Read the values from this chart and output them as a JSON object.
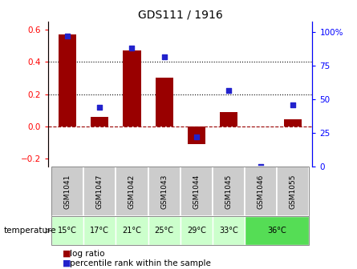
{
  "title": "GDS111 / 1916",
  "samples": [
    "GSM1041",
    "GSM1047",
    "GSM1042",
    "GSM1043",
    "GSM1044",
    "GSM1045",
    "GSM1046",
    "GSM1055"
  ],
  "temperatures": [
    "15°C",
    "17°C",
    "21°C",
    "25°C",
    "29°C",
    "33°C",
    "36°C",
    "36°C"
  ],
  "log_ratios": [
    0.57,
    0.06,
    0.47,
    0.3,
    -0.11,
    0.09,
    0.0,
    0.045
  ],
  "percentile_ranks": [
    97,
    44,
    88,
    82,
    22,
    57,
    0,
    46
  ],
  "bar_color": "#990000",
  "dot_color": "#2222cc",
  "left_ylim": [
    -0.25,
    0.65
  ],
  "right_ylim": [
    0,
    108
  ],
  "left_yticks": [
    -0.2,
    0.0,
    0.2,
    0.4,
    0.6
  ],
  "right_yticks": [
    0,
    25,
    50,
    75,
    100
  ],
  "right_yticklabels": [
    "0",
    "25",
    "50",
    "75",
    "100%"
  ],
  "hline_y": [
    0.2,
    0.4
  ],
  "zero_line_y": 0.0,
  "temp_color_light": "#ccffcc",
  "temp_color_strong": "#55dd55",
  "sample_bg_color": "#cccccc",
  "temp_label": "temperature"
}
